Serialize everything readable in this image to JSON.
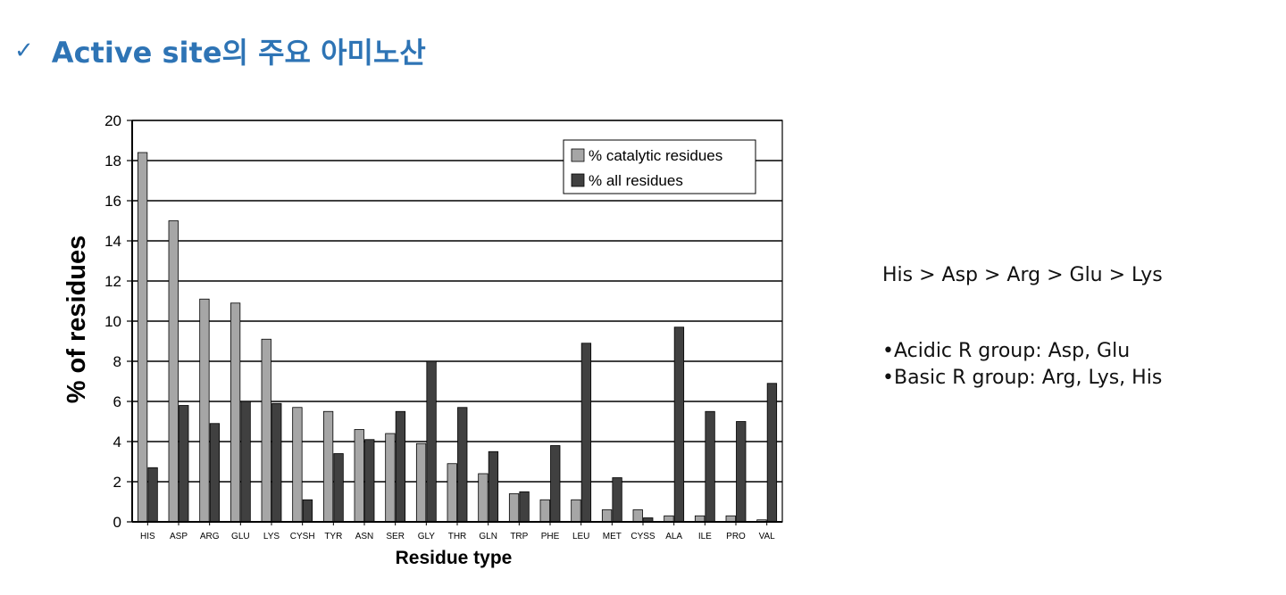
{
  "slide": {
    "check_icon": "check-icon",
    "title": "Active site의 주요 아미노산",
    "title_color": "#2e74b5"
  },
  "notes": {
    "order": "His > Asp > Arg > Glu > Lys",
    "bullets": [
      "•Acidic R group: Asp, Glu",
      "•Basic R group: Arg, Lys, His"
    ]
  },
  "chart_data": {
    "type": "bar",
    "categories": [
      "HIS",
      "ASP",
      "ARG",
      "GLU",
      "LYS",
      "CYSH",
      "TYR",
      "ASN",
      "SER",
      "GLY",
      "THR",
      "GLN",
      "TRP",
      "PHE",
      "LEU",
      "MET",
      "CYSS",
      "ALA",
      "ILE",
      "PRO",
      "VAL"
    ],
    "series": [
      {
        "name": "% catalytic residues",
        "color": "#a6a6a6",
        "values": [
          18.4,
          15.0,
          11.1,
          10.9,
          9.1,
          5.7,
          5.5,
          4.6,
          4.4,
          3.9,
          2.9,
          2.4,
          1.4,
          1.1,
          1.1,
          0.6,
          0.6,
          0.3,
          0.3,
          0.3,
          0.1
        ]
      },
      {
        "name": "% all residues",
        "color": "#404040",
        "values": [
          2.7,
          5.8,
          4.9,
          6.0,
          5.9,
          1.1,
          3.4,
          4.1,
          5.5,
          8.0,
          5.7,
          3.5,
          1.5,
          3.8,
          8.9,
          2.2,
          0.2,
          9.7,
          5.5,
          5.0,
          6.9
        ]
      }
    ],
    "xlabel": "Residue type",
    "ylabel": "% of residues",
    "ylim": [
      0,
      20
    ],
    "yticks": [
      0,
      2,
      4,
      6,
      8,
      10,
      12,
      14,
      16,
      18,
      20
    ],
    "grid": true,
    "legend_position": "top-right"
  }
}
